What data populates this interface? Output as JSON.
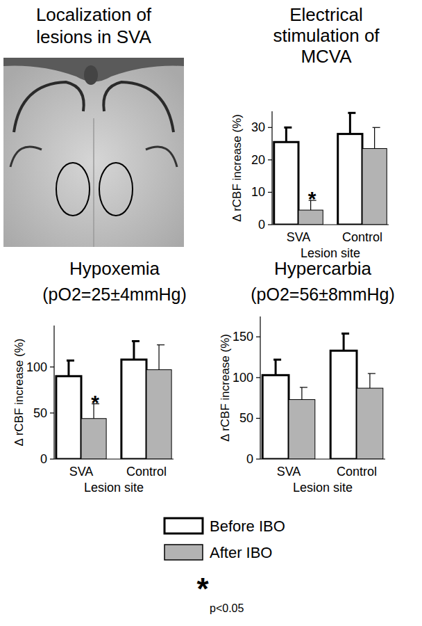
{
  "image_panel": {
    "title": "Localization of lesions in SVA"
  },
  "chart_data": [
    {
      "type": "bar",
      "title": "Electrical stimulation of MCVA",
      "xlabel": "Lesion site",
      "ylabel": "Δ rCBF increase (%)",
      "categories": [
        "SVA",
        "Control"
      ],
      "ylim": [
        0,
        35
      ],
      "yticks": [
        0,
        10,
        20,
        30
      ],
      "series": [
        {
          "name": "Before IBO",
          "color": "#ffffff",
          "values": [
            25.5,
            28
          ],
          "errors": [
            4.5,
            6.5
          ]
        },
        {
          "name": "After IBO",
          "color": "#b3b3b3",
          "values": [
            4.5,
            23.5
          ],
          "errors": [
            3,
            6.5
          ],
          "significance": [
            "*",
            null
          ]
        }
      ]
    },
    {
      "type": "bar",
      "title": "Hypoxemia",
      "subtitle": "(pO2=25±4mmHg)",
      "xlabel": "Lesion site",
      "ylabel": "Δ rCBF increase (%)",
      "categories": [
        "SVA",
        "Control"
      ],
      "ylim": [
        0,
        145
      ],
      "yticks": [
        0,
        50,
        100
      ],
      "series": [
        {
          "name": "Before IBO",
          "color": "#ffffff",
          "values": [
            90,
            108
          ],
          "errors": [
            17,
            20
          ]
        },
        {
          "name": "After IBO",
          "color": "#b3b3b3",
          "values": [
            44,
            97
          ],
          "errors": [
            16,
            27
          ],
          "significance": [
            "*",
            null
          ]
        }
      ]
    },
    {
      "type": "bar",
      "title": "Hypercarbia",
      "subtitle": "(pO2=56±8mmHg)",
      "xlabel": "Lesion site",
      "ylabel": "Δ rCBF increase (%)",
      "categories": [
        "SVA",
        "Control"
      ],
      "ylim": [
        0,
        175
      ],
      "yticks": [
        0,
        50,
        100,
        150
      ],
      "series": [
        {
          "name": "Before IBO",
          "color": "#ffffff",
          "values": [
            103,
            133
          ],
          "errors": [
            19,
            21
          ]
        },
        {
          "name": "After IBO",
          "color": "#b3b3b3",
          "values": [
            73,
            87
          ],
          "errors": [
            15,
            18
          ]
        }
      ]
    }
  ],
  "footnote": {
    "symbol": "*",
    "text": "p<0.05"
  }
}
